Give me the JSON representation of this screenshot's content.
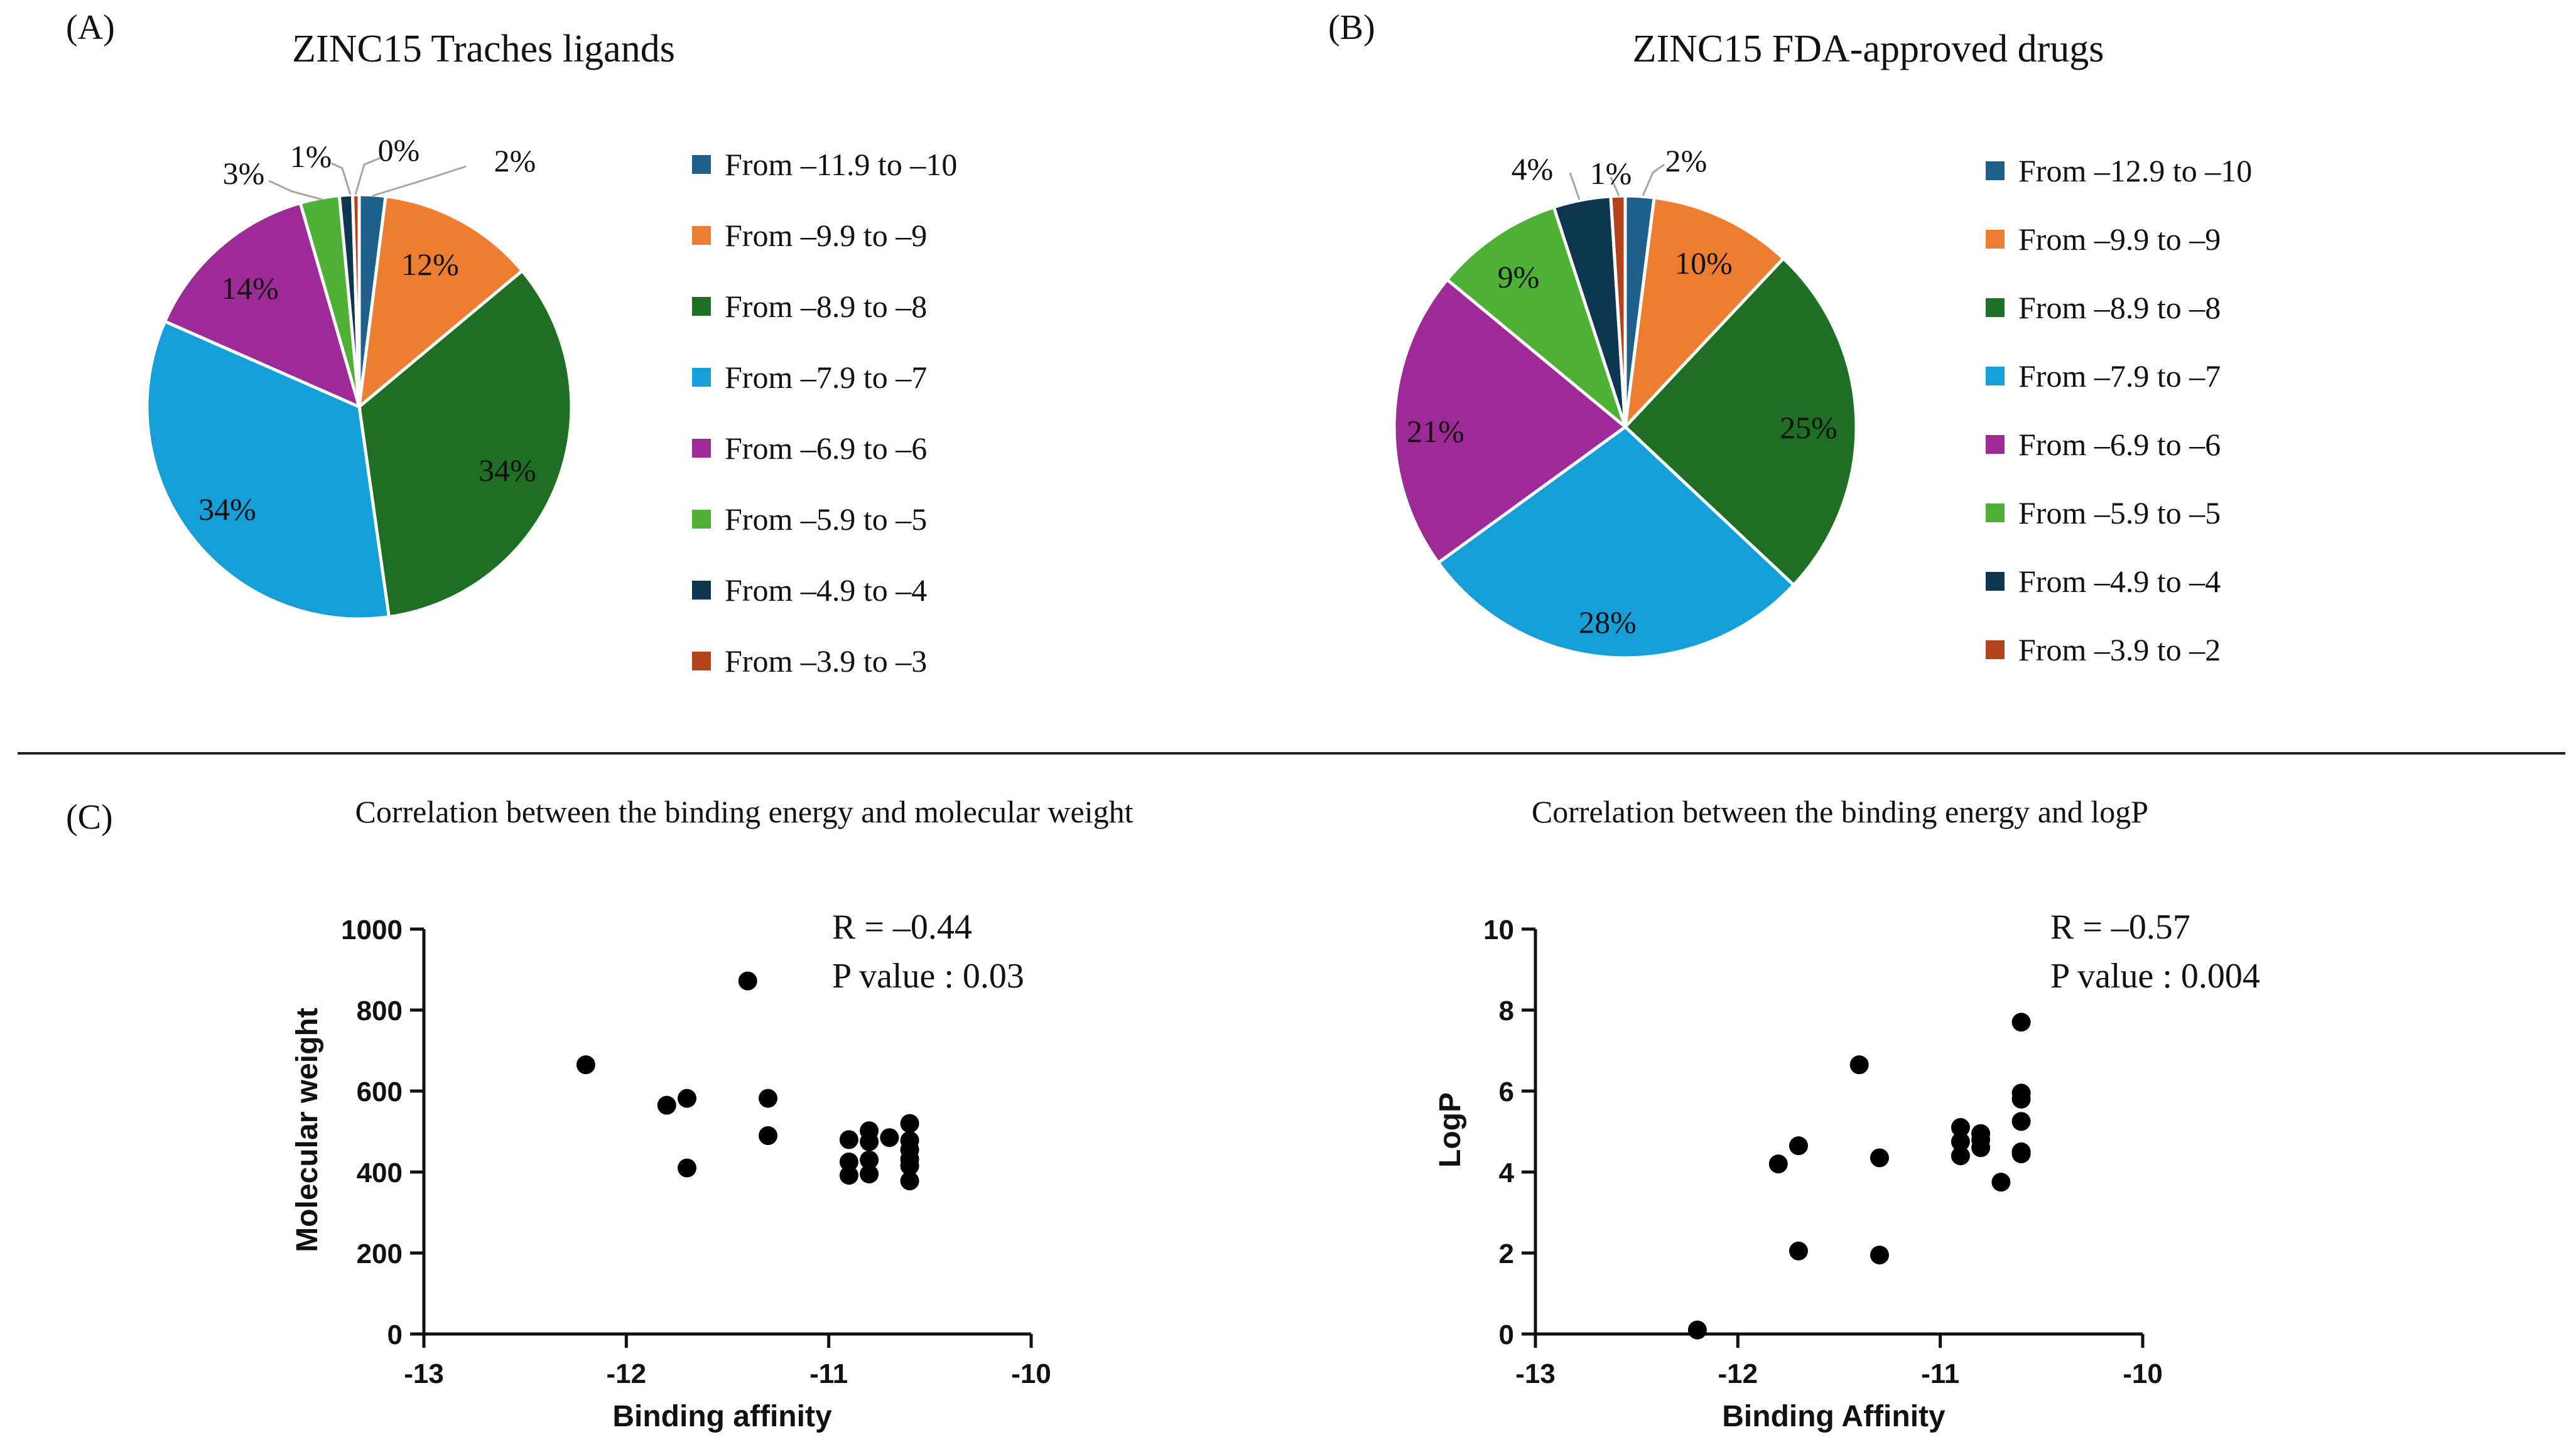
{
  "panels": {
    "a_label": "(A)",
    "b_label": "(B)",
    "c_label": "(C)"
  },
  "chart_data": [
    {
      "type": "pie",
      "title": "ZINC15 Traches ligands",
      "labels": [
        "From –11.9 to –10",
        "From –9.9 to –9",
        "From –8.9 to –8",
        "From –7.9 to –7",
        "From –6.9 to –6",
        "From –5.9 to –5",
        "From –4.9 to –4",
        "From –3.9 to –3"
      ],
      "values": [
        2,
        12,
        34,
        34,
        14,
        3,
        1,
        0.5
      ],
      "value_labels": [
        "2%",
        "12%",
        "34%",
        "34%",
        "14%",
        "3%",
        "1%",
        "0%"
      ],
      "colors": [
        "#1f5f8b",
        "#ed7d31",
        "#1e6e24",
        "#149fd8",
        "#9d2a96",
        "#4fb036",
        "#0f3650",
        "#b4431c"
      ],
      "legend": "right"
    },
    {
      "type": "pie",
      "title": "ZINC15 FDA-approved drugs",
      "labels": [
        "From –12.9 to –10",
        "From –9.9 to –9",
        "From –8.9 to –8",
        "From –7.9 to –7",
        "From –6.9 to –6",
        "From –5.9 to –5",
        "From –4.9 to –4",
        "From –3.9 to –2"
      ],
      "values": [
        2,
        10,
        25,
        28,
        21,
        9,
        4,
        1
      ],
      "value_labels": [
        "2%",
        "10%",
        "25%",
        "28%",
        "21%",
        "9%",
        "4%",
        "1%"
      ],
      "colors": [
        "#1f5f8b",
        "#ed7d31",
        "#1e6e24",
        "#149fd8",
        "#9d2a96",
        "#4fb036",
        "#0f3650",
        "#b4431c"
      ],
      "legend": "right"
    },
    {
      "type": "scatter",
      "title": "Correlation between the binding energy and molecular weight",
      "xlabel": "Binding affinity",
      "ylabel": "Molecular weight",
      "xlim": [
        -13,
        -10
      ],
      "ylim": [
        0,
        1000
      ],
      "xticks": [
        -13,
        -12,
        -11,
        -10
      ],
      "yticks": [
        0,
        200,
        400,
        600,
        800,
        1000
      ],
      "annotation": [
        "R = –0.44",
        "P value : 0.03"
      ],
      "points": [
        [
          -12.2,
          665
        ],
        [
          -11.8,
          565
        ],
        [
          -11.7,
          582
        ],
        [
          -11.7,
          410
        ],
        [
          -11.4,
          872
        ],
        [
          -11.3,
          582
        ],
        [
          -11.3,
          490
        ],
        [
          -10.9,
          480
        ],
        [
          -10.9,
          425
        ],
        [
          -10.9,
          392
        ],
        [
          -10.8,
          502
        ],
        [
          -10.8,
          475
        ],
        [
          -10.8,
          430
        ],
        [
          -10.8,
          395
        ],
        [
          -10.7,
          485
        ],
        [
          -10.6,
          520
        ],
        [
          -10.6,
          478
        ],
        [
          -10.6,
          455
        ],
        [
          -10.6,
          432
        ],
        [
          -10.6,
          415
        ],
        [
          -10.6,
          378
        ]
      ]
    },
    {
      "type": "scatter",
      "title": "Correlation between the binding energy and logP",
      "xlabel": "Binding Affinity",
      "ylabel": "LogP",
      "xlim": [
        -13,
        -10
      ],
      "ylim": [
        0,
        10
      ],
      "xticks": [
        -13,
        -12,
        -11,
        -10
      ],
      "yticks": [
        0,
        2,
        4,
        6,
        8,
        10
      ],
      "annotation": [
        "R = –0.57",
        "P value : 0.004"
      ],
      "points": [
        [
          -12.2,
          0.1
        ],
        [
          -11.8,
          4.2
        ],
        [
          -11.7,
          4.65
        ],
        [
          -11.7,
          2.05
        ],
        [
          -11.4,
          6.65
        ],
        [
          -11.3,
          4.35
        ],
        [
          -11.3,
          1.95
        ],
        [
          -10.9,
          5.1
        ],
        [
          -10.9,
          4.75
        ],
        [
          -10.9,
          4.4
        ],
        [
          -10.8,
          4.95
        ],
        [
          -10.8,
          4.8
        ],
        [
          -10.8,
          4.6
        ],
        [
          -10.7,
          3.75
        ],
        [
          -10.6,
          7.7
        ],
        [
          -10.6,
          5.95
        ],
        [
          -10.6,
          5.8
        ],
        [
          -10.6,
          5.25
        ],
        [
          -10.6,
          4.5
        ],
        [
          -10.6,
          4.45
        ]
      ]
    }
  ]
}
